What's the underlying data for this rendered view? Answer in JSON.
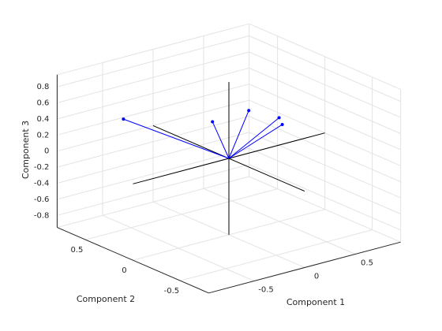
{
  "chart_data": {
    "type": "biplot3d",
    "xlabel": "Component 1",
    "ylabel": "Component 2",
    "zlabel": "Component 3",
    "x": [
      -0.5,
      0.1,
      0.3,
      0.6,
      0.5
    ],
    "y": [
      0.58,
      0.28,
      0.11,
      0.11,
      -0.03
    ],
    "z": [
      0.36,
      0.28,
      0.44,
      0.25,
      0.27
    ],
    "color": "#0000ff",
    "axis_color": "#000000",
    "xlim": [
      -0.95,
      0.95
    ],
    "ylim": [
      -0.8,
      0.8
    ],
    "zlim": [
      -0.95,
      0.95
    ],
    "xticks": [
      -0.5,
      0,
      0.5
    ],
    "yticks": [
      -0.5,
      0,
      0.5
    ],
    "zticks": [
      -0.8,
      -0.6,
      -0.4,
      -0.2,
      0,
      0.2,
      0.4,
      0.6,
      0.8
    ],
    "grid": true
  }
}
